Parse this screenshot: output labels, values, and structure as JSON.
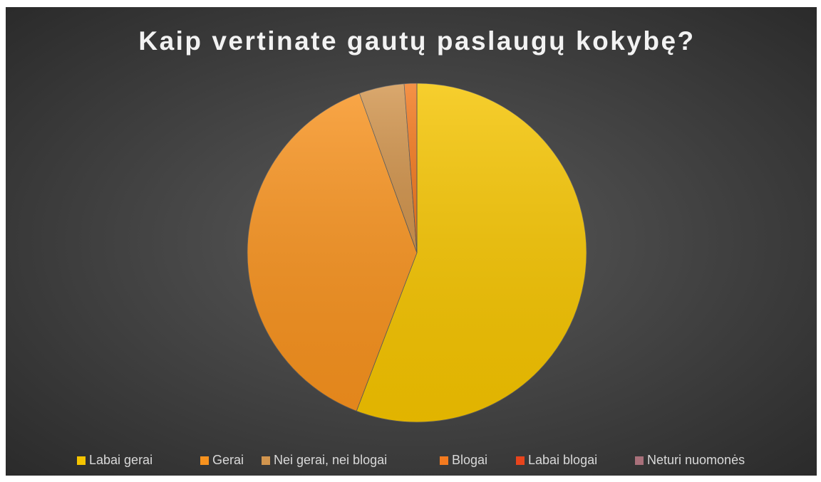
{
  "chart_data": {
    "type": "pie",
    "title": "Kaip vertinate gautų paslaugų kokybę?",
    "categories": [
      "Labai gerai",
      "Gerai",
      "Nei gerai, nei blogai",
      "Blogai",
      "Labai blogai",
      "Neturi nuomonės"
    ],
    "values": [
      55.8,
      38.7,
      4.3,
      1.2,
      0,
      0
    ],
    "colors": [
      "#f5c400",
      "#f7921e",
      "#d2954e",
      "#f37a1f",
      "#e8441c",
      "#a8707a"
    ],
    "legend": "bottom"
  }
}
